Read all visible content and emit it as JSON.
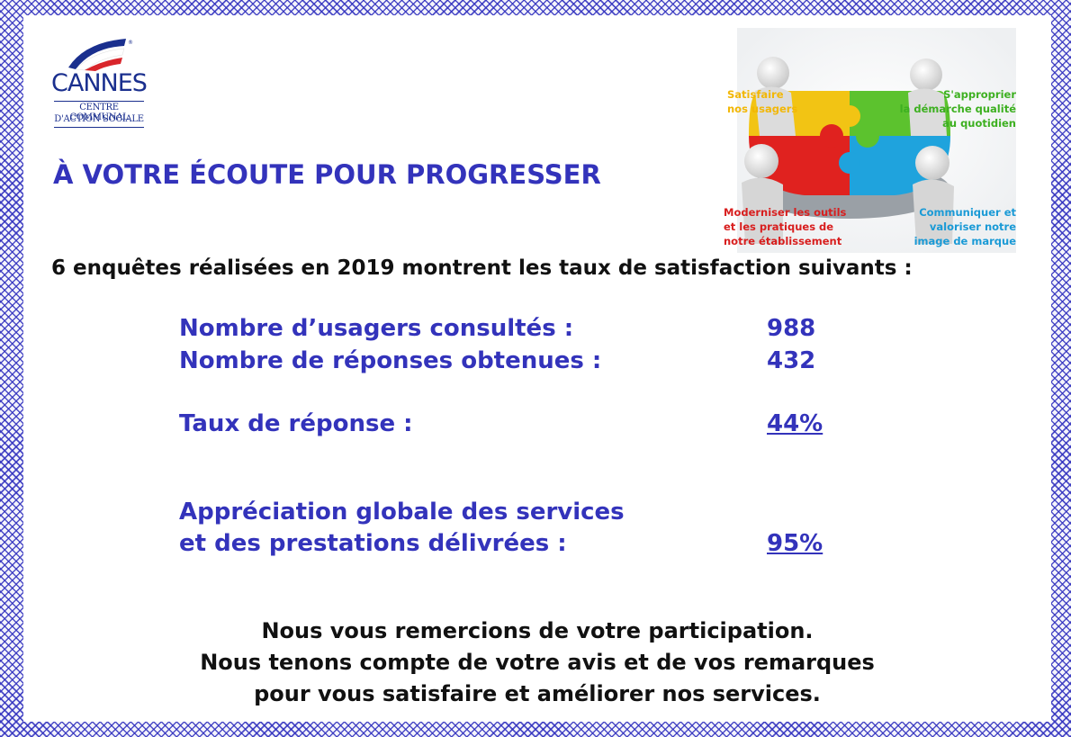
{
  "logo": {
    "name": "CANNES",
    "line1": "CENTRE COMMUNAL",
    "line2": "D'ACTION SOCIALE"
  },
  "title": "À VOTRE ÉCOUTE POUR PROGRESSER",
  "illustration": {
    "labels": {
      "top_left": [
        "Satisfaire",
        "nos usagers"
      ],
      "top_right": [
        "S'approprier",
        "la démarche qualité",
        "au quotidien"
      ],
      "bottom_left": [
        "Moderniser les outils",
        "et les pratiques de",
        "notre établissement"
      ],
      "bottom_right": [
        "Communiquer et",
        "valoriser notre",
        "image de marque"
      ]
    },
    "colors": {
      "yellow": "#f2c414",
      "green": "#5cc22e",
      "red": "#e0221f",
      "blue": "#1fa3dd",
      "navy": "#1a2f8e",
      "flag_red": "#d9252b"
    }
  },
  "intro": "6 enquêtes réalisées en 2019 montrent les taux de satisfaction suivants :",
  "stats": {
    "consulted_label": "Nombre d’usagers consultés :",
    "consulted_value": "988",
    "responses_label": "Nombre de réponses obtenues :",
    "responses_value": "432",
    "rate_label": "Taux de réponse :",
    "rate_value": "44%",
    "appreciation_label_1": "Appréciation globale des services",
    "appreciation_label_2": "et des prestations délivrées :",
    "appreciation_value": "95%"
  },
  "closing": [
    "Nous vous remercions de votre participation.",
    "Nous tenons compte de votre avis et de vos remarques",
    "pour vous satisfaire et améliorer nos services."
  ],
  "accent_color": "#3333bb",
  "border_color": "#3030be"
}
